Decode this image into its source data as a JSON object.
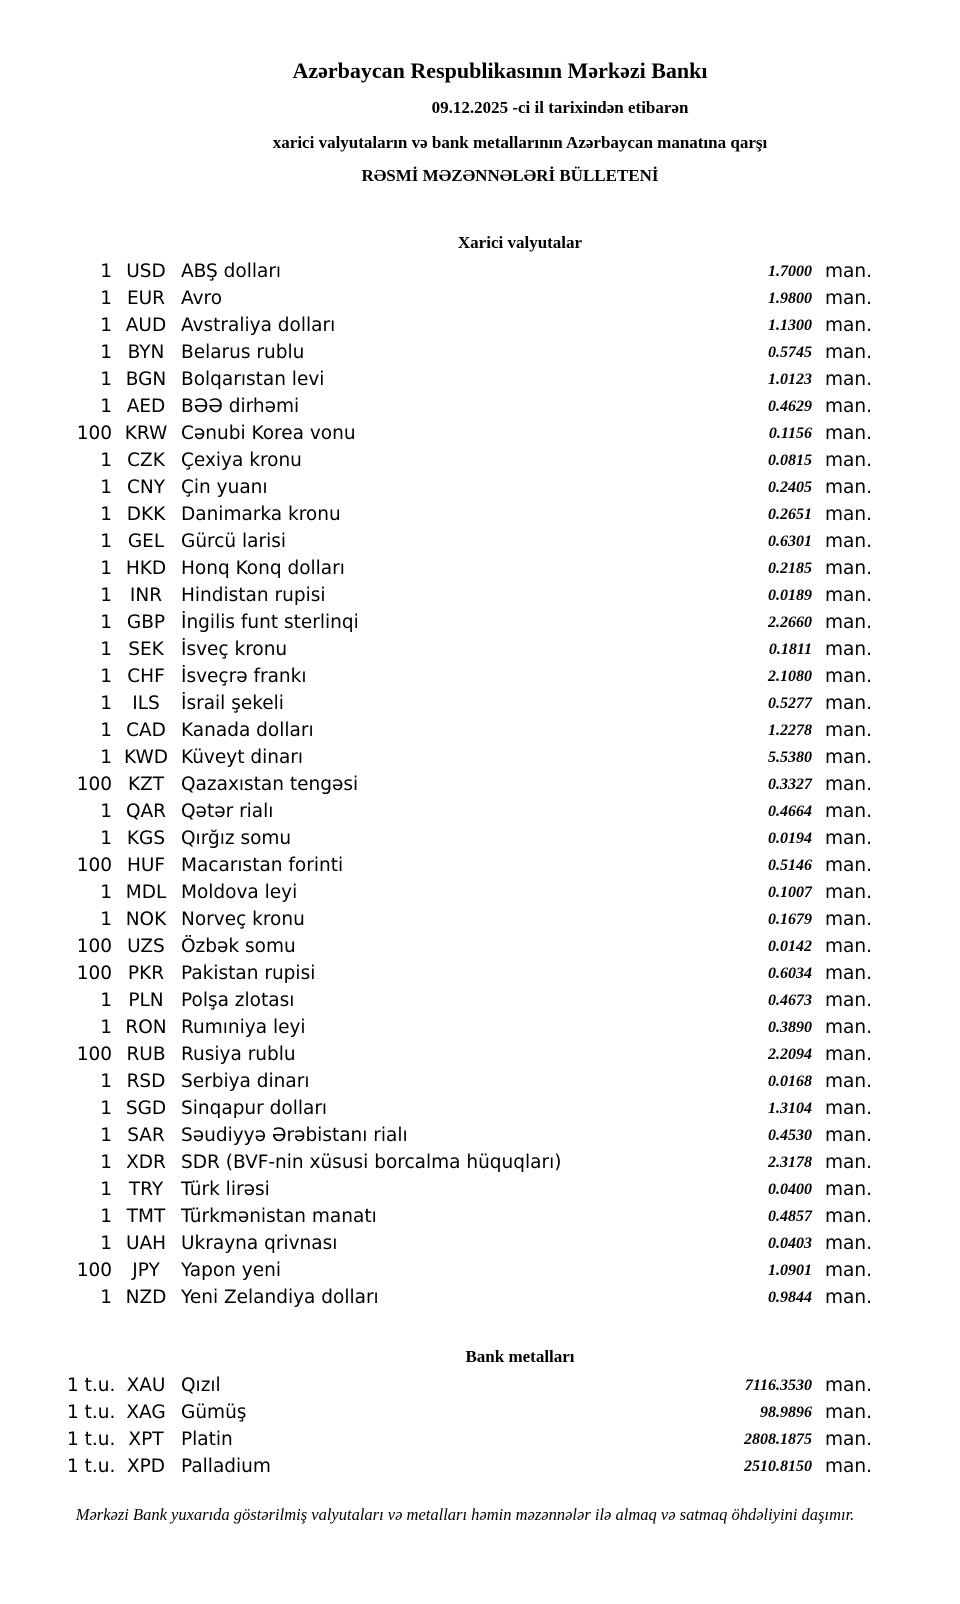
{
  "header": {
    "title": "Azərbaycan Respublikasının Mərkəzi Bankı",
    "date_line": "09.12.2025 -ci il tarixindən etibarən",
    "subtitle": "xarici valyutaların və bank metallarının Azərbaycan manatına qarşı",
    "bulletin": "RƏSMİ MƏZƏNNƏLƏRİ BÜLLETENİ"
  },
  "currencies": {
    "heading": "Xarici valyutalar",
    "unit": "man.",
    "rows": [
      {
        "qty": "1",
        "code": "USD",
        "name": "ABŞ dolları",
        "rate": "1.7000"
      },
      {
        "qty": "1",
        "code": "EUR",
        "name": "Avro",
        "rate": "1.9800"
      },
      {
        "qty": "1",
        "code": "AUD",
        "name": "Avstraliya dolları",
        "rate": "1.1300"
      },
      {
        "qty": "1",
        "code": "BYN",
        "name": "Belarus rublu",
        "rate": "0.5745"
      },
      {
        "qty": "1",
        "code": "BGN",
        "name": "Bolqarıstan levi",
        "rate": "1.0123"
      },
      {
        "qty": "1",
        "code": "AED",
        "name": "BƏƏ dirhəmi",
        "rate": "0.4629"
      },
      {
        "qty": "100",
        "code": "KRW",
        "name": "Cənubi Korea vonu",
        "rate": "0.1156"
      },
      {
        "qty": "1",
        "code": "CZK",
        "name": "Çexiya kronu",
        "rate": "0.0815"
      },
      {
        "qty": "1",
        "code": "CNY",
        "name": "Çin yuanı",
        "rate": "0.2405"
      },
      {
        "qty": "1",
        "code": "DKK",
        "name": "Danimarka kronu",
        "rate": "0.2651"
      },
      {
        "qty": "1",
        "code": "GEL",
        "name": "Gürcü larisi",
        "rate": "0.6301"
      },
      {
        "qty": "1",
        "code": "HKD",
        "name": "Honq Konq dolları",
        "rate": "0.2185"
      },
      {
        "qty": "1",
        "code": "INR",
        "name": "Hindistan rupisi",
        "rate": "0.0189"
      },
      {
        "qty": "1",
        "code": "GBP",
        "name": "İngilis funt sterlinqi",
        "rate": "2.2660"
      },
      {
        "qty": "1",
        "code": "SEK",
        "name": "İsveç kronu",
        "rate": "0.1811"
      },
      {
        "qty": "1",
        "code": "CHF",
        "name": "İsveçrə frankı",
        "rate": "2.1080"
      },
      {
        "qty": "1",
        "code": "ILS",
        "name": "İsrail şekeli",
        "rate": "0.5277"
      },
      {
        "qty": "1",
        "code": "CAD",
        "name": "Kanada dolları",
        "rate": "1.2278"
      },
      {
        "qty": "1",
        "code": "KWD",
        "name": "Küveyt dinarı",
        "rate": "5.5380"
      },
      {
        "qty": "100",
        "code": "KZT",
        "name": "Qazaxıstan tengəsi",
        "rate": "0.3327"
      },
      {
        "qty": "1",
        "code": "QAR",
        "name": "Qətər rialı",
        "rate": "0.4664"
      },
      {
        "qty": "1",
        "code": "KGS",
        "name": "Qırğız somu",
        "rate": "0.0194"
      },
      {
        "qty": "100",
        "code": "HUF",
        "name": "Macarıstan forinti",
        "rate": "0.5146"
      },
      {
        "qty": "1",
        "code": "MDL",
        "name": "Moldova leyi",
        "rate": "0.1007"
      },
      {
        "qty": "1",
        "code": "NOK",
        "name": "Norveç kronu",
        "rate": "0.1679"
      },
      {
        "qty": "100",
        "code": "UZS",
        "name": "Özbək somu",
        "rate": "0.0142"
      },
      {
        "qty": "100",
        "code": "PKR",
        "name": "Pakistan rupisi",
        "rate": "0.6034"
      },
      {
        "qty": "1",
        "code": "PLN",
        "name": "Polşa zlotası",
        "rate": "0.4673"
      },
      {
        "qty": "1",
        "code": "RON",
        "name": "Rumıniya leyi",
        "rate": "0.3890"
      },
      {
        "qty": "100",
        "code": "RUB",
        "name": "Rusiya rublu",
        "rate": "2.2094"
      },
      {
        "qty": "1",
        "code": "RSD",
        "name": "Serbiya dinarı",
        "rate": "0.0168"
      },
      {
        "qty": "1",
        "code": "SGD",
        "name": "Sinqapur dolları",
        "rate": "1.3104"
      },
      {
        "qty": "1",
        "code": "SAR",
        "name": "Səudiyyə Ərəbistanı rialı",
        "rate": "0.4530"
      },
      {
        "qty": "1",
        "code": "XDR",
        "name": "SDR (BVF-nin xüsusi borcalma hüquqları)",
        "rate": "2.3178"
      },
      {
        "qty": "1",
        "code": "TRY",
        "name": "Türk lirəsi",
        "rate": "0.0400"
      },
      {
        "qty": "1",
        "code": "TMT",
        "name": "Türkmənistan manatı",
        "rate": "0.4857"
      },
      {
        "qty": "1",
        "code": "UAH",
        "name": "Ukrayna qrivnası",
        "rate": "0.0403"
      },
      {
        "qty": "100",
        "code": "JPY",
        "name": "Yapon yeni",
        "rate": "1.0901"
      },
      {
        "qty": "1",
        "code": "NZD",
        "name": "Yeni Zelandiya dolları",
        "rate": "0.9844"
      }
    ]
  },
  "metals": {
    "heading": "Bank metalları",
    "unit": "man.",
    "rows": [
      {
        "qty": "1 t.u.",
        "code": "XAU",
        "name": "Qızıl",
        "rate": "7116.3530"
      },
      {
        "qty": "1 t.u.",
        "code": "XAG",
        "name": "Gümüş",
        "rate": "98.9896"
      },
      {
        "qty": "1 t.u.",
        "code": "XPT",
        "name": "Platin",
        "rate": "2808.1875"
      },
      {
        "qty": "1 t.u.",
        "code": "XPD",
        "name": "Palladium",
        "rate": "2510.8150"
      }
    ]
  },
  "footer": "Mərkəzi Bank yuxarıda göstərilmiş valyutaları və metalları həmin məzənnələr ilə almaq və satmaq öhdəliyini daşımır."
}
